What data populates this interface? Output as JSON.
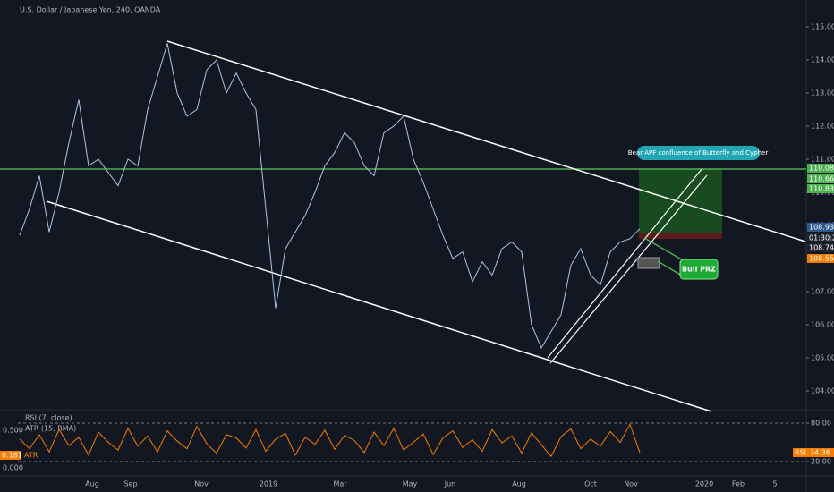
{
  "header": {
    "symbol": "U.S. Dollar / Japanese Yen, 240, OANDA"
  },
  "price_pane": {
    "ylim": [
      103.6,
      115.4
    ],
    "yticks": [
      {
        "value": 104,
        "label": "104.000"
      },
      {
        "value": 105,
        "label": "105.000"
      },
      {
        "value": 106,
        "label": "106.000"
      },
      {
        "value": 107,
        "label": "107.000"
      },
      {
        "value": 108,
        "label": "108.000"
      },
      {
        "value": 109,
        "label": "109.000"
      },
      {
        "value": 110,
        "label": "110.000"
      },
      {
        "value": 111,
        "label": "111.000"
      },
      {
        "value": 112,
        "label": "112.000"
      },
      {
        "value": 113,
        "label": "113.000"
      },
      {
        "value": 114,
        "label": "114.000"
      },
      {
        "value": 115,
        "label": "115.000"
      }
    ],
    "price": [
      108.7,
      109.5,
      110.5,
      108.8,
      110,
      111.5,
      112.8,
      110.8,
      111,
      110.6,
      110.2,
      111,
      110.8,
      112.5,
      113.5,
      114.5,
      113,
      112.3,
      112.5,
      113.7,
      114,
      113,
      113.6,
      113,
      112.5,
      109.5,
      106.5,
      108.3,
      108.8,
      109.3,
      110,
      110.8,
      111.2,
      111.8,
      111.5,
      110.8,
      110.5,
      111.8,
      112,
      112.3,
      111,
      110.3,
      109.5,
      108.7,
      108,
      108.2,
      107.3,
      107.9,
      107.5,
      108.3,
      108.5,
      108.2,
      106,
      105.3,
      105.8,
      106.3,
      107.8,
      108.3,
      107.5,
      107.2,
      108.2,
      108.5,
      108.6,
      108.9
    ],
    "line_color": "#a9c7e8",
    "tags": [
      {
        "text": 110.082,
        "color": "#4caf50"
      },
      {
        "text": 110.666,
        "color": "#4caf50"
      },
      {
        "text": 110.834,
        "color": "#4caf50"
      },
      {
        "text": 108.933,
        "color": "#2f5a8c"
      },
      {
        "text": "01:30:27",
        "color": "#1e222d"
      },
      {
        "text": 108.744,
        "color": "#1e222d"
      },
      {
        "text": 108.552,
        "color": "#f57c00"
      }
    ],
    "annotations": {
      "bear": "Bear APF confluence of Butterfly and Cypher",
      "bull": "Bull PRZ"
    }
  },
  "indicator_pane": {
    "rsi_label": "RSI (7, close)",
    "atr_label": "ATR (15, RMA)",
    "ylim": [
      5,
      95
    ],
    "yticks": [
      {
        "value": 80,
        "label": "80.00"
      },
      {
        "value": 20,
        "label": "20.00"
      }
    ],
    "left_ticks": [
      "0.500",
      "0.000"
    ],
    "atr_value": 0.181,
    "atr_tag": "ATR",
    "rsi_tag": "RSI",
    "rsi_value": 34.36,
    "rsi": [
      55,
      40,
      62,
      35,
      70,
      45,
      58,
      30,
      66,
      50,
      38,
      72,
      44,
      60,
      35,
      68,
      52,
      40,
      75,
      48,
      33,
      62,
      57,
      41,
      70,
      36,
      55,
      64,
      30,
      58,
      47,
      69,
      39,
      61,
      53,
      34,
      66,
      45,
      72,
      38,
      50,
      63,
      31,
      57,
      68,
      42,
      54,
      36,
      70,
      49,
      60,
      33,
      65,
      46,
      28,
      59,
      71,
      40,
      55,
      44,
      67,
      50,
      78,
      34
    ],
    "line_color": "#f57c00"
  },
  "time_axis": {
    "labels": [
      "Aug",
      "Sep",
      "Nov",
      "2019",
      "Mar",
      "May",
      "Jun",
      "Aug",
      "Oct",
      "Nov",
      "2020",
      "Feb",
      "5"
    ]
  }
}
